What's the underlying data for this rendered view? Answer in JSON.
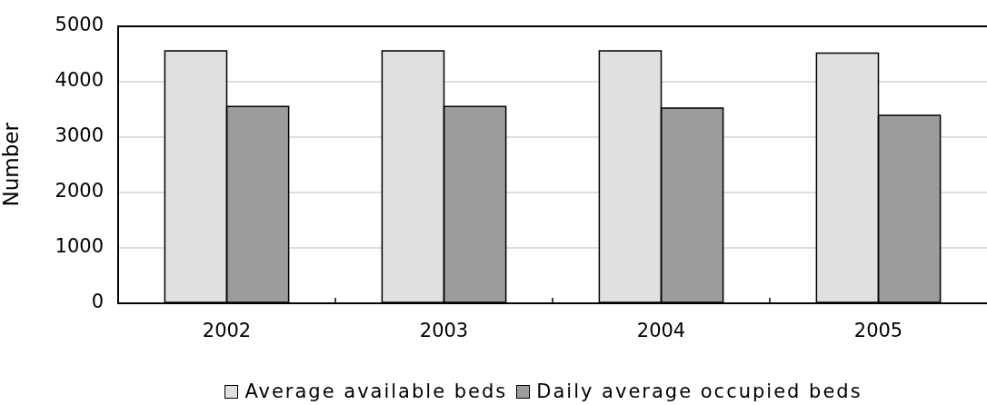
{
  "chart_data": {
    "type": "bar",
    "ylabel": "Number",
    "categories": [
      "2002",
      "2003",
      "2004",
      "2005"
    ],
    "series": [
      {
        "name": "Average available beds",
        "color": "#e0e0e0",
        "values": [
          4550,
          4550,
          4550,
          4510
        ]
      },
      {
        "name": "Daily average occupied beds",
        "color": "#9c9c9c",
        "values": [
          3550,
          3550,
          3520,
          3390
        ]
      }
    ],
    "ylim": [
      0,
      5000
    ],
    "yticks": [
      0,
      1000,
      2000,
      3000,
      4000,
      5000
    ],
    "grid": "y",
    "legend": "bottom"
  }
}
